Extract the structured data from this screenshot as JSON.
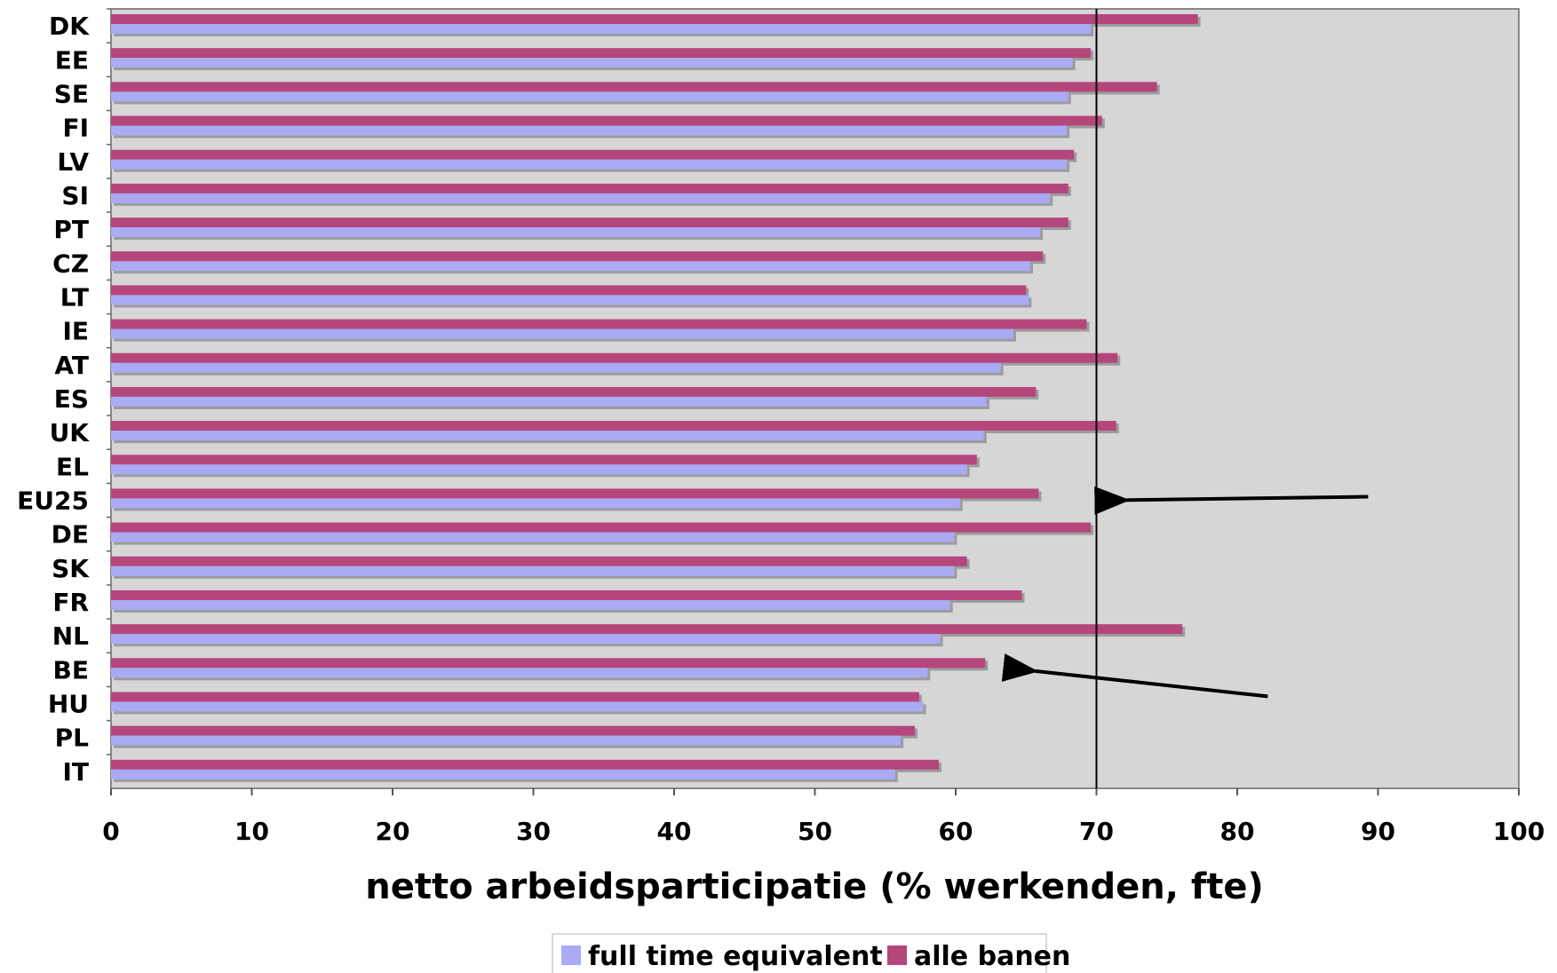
{
  "chart_data": {
    "type": "bar",
    "orientation": "horizontal",
    "title": "",
    "xlabel": "netto arbeidsparticipatie (% werkenden, fte)",
    "ylabel": "",
    "xlim": [
      0,
      100
    ],
    "xticks": [
      0,
      10,
      20,
      30,
      40,
      50,
      60,
      70,
      80,
      90,
      100
    ],
    "grid": false,
    "reference_line": {
      "x": 70
    },
    "legend_position": "bottom",
    "categories": [
      "DK",
      "EE",
      "SE",
      "FI",
      "LV",
      "SI",
      "PT",
      "CZ",
      "LT",
      "IE",
      "AT",
      "ES",
      "UK",
      "EL",
      "EU25",
      "DE",
      "SK",
      "FR",
      "NL",
      "BE",
      "HU",
      "PL",
      "IT"
    ],
    "series": [
      {
        "name": "full time equivalent",
        "color": "#aaaaf5",
        "values": [
          69.6,
          68.3,
          68.0,
          67.9,
          67.9,
          66.7,
          66.0,
          65.3,
          65.2,
          64.1,
          63.2,
          62.2,
          62.0,
          60.8,
          60.3,
          59.9,
          59.9,
          59.6,
          58.9,
          58.0,
          57.7,
          56.1,
          55.7
        ]
      },
      {
        "name": "alle banen",
        "color": "#b5467b",
        "values": [
          77.2,
          69.6,
          74.3,
          70.4,
          68.4,
          68.0,
          68.0,
          66.2,
          65.0,
          69.3,
          71.5,
          65.7,
          71.4,
          61.5,
          65.9,
          69.6,
          60.8,
          64.7,
          76.1,
          62.1,
          57.4,
          57.1,
          58.8
        ]
      }
    ],
    "arrows": [
      {
        "target": "EU25",
        "value": 71.0
      },
      {
        "target": "BE",
        "value": 64.5
      }
    ]
  }
}
